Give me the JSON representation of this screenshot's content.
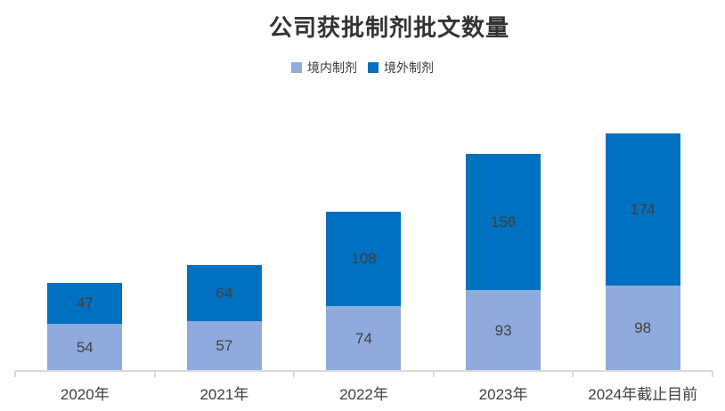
{
  "header": {
    "title": "公司获批制剂批文数量"
  },
  "legend": {
    "items": [
      {
        "label": "境内制剂",
        "color": "#8FAADC"
      },
      {
        "label": "境外制剂",
        "color": "#0070C0"
      }
    ]
  },
  "colors": {
    "series_domestic": "#8FAADC",
    "series_overseas": "#0070C0",
    "axis_line": "#d9d9d9",
    "title_text": "#333333",
    "label_text": "#404040",
    "background": "#ffffff"
  },
  "chart_data": {
    "type": "bar",
    "stacked": true,
    "title": "公司获批制剂批文数量",
    "xlabel": "",
    "ylabel": "",
    "categories": [
      "2020年",
      "2021年",
      "2022年",
      "2023年",
      "2024年截止目前"
    ],
    "series": [
      {
        "name": "境内制剂",
        "color": "#8FAADC",
        "values": [
          54,
          57,
          74,
          93,
          98
        ]
      },
      {
        "name": "境外制剂",
        "color": "#0070C0",
        "values": [
          47,
          64,
          108,
          156,
          174
        ]
      }
    ],
    "totals": [
      101,
      121,
      182,
      249,
      272
    ],
    "value_labels_shown": true,
    "legend_position": "top",
    "grid": false,
    "y_axis_shown": false,
    "ylim": [
      0,
      272
    ]
  }
}
